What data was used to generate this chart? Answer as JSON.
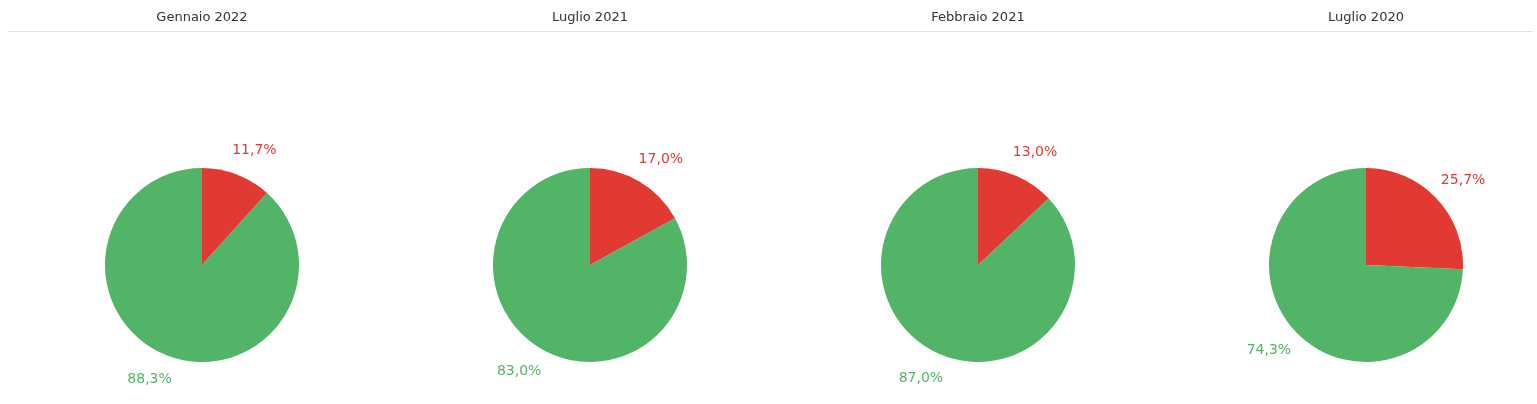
{
  "chart_data": [
    {
      "type": "pie",
      "title": "Gennaio 2022",
      "categories": [
        null,
        null
      ],
      "values": [
        11.7,
        88.3
      ],
      "colors": [
        "#e03a33",
        "#52b466"
      ],
      "value_labels": [
        "11,7%",
        "88,3%"
      ]
    },
    {
      "type": "pie",
      "title": "Luglio 2021",
      "categories": [
        null,
        null
      ],
      "values": [
        17.0,
        83.0
      ],
      "colors": [
        "#e03a33",
        "#52b466"
      ],
      "value_labels": [
        "17,0%",
        "83,0%"
      ]
    },
    {
      "type": "pie",
      "title": "Febbraio 2021",
      "categories": [
        null,
        null
      ],
      "values": [
        13.0,
        87.0
      ],
      "colors": [
        "#e03a33",
        "#52b466"
      ],
      "value_labels": [
        "13,0%",
        "87,0%"
      ]
    },
    {
      "type": "pie",
      "title": "Luglio 2020",
      "categories": [
        null,
        null
      ],
      "values": [
        25.7,
        74.3
      ],
      "colors": [
        "#e03a33",
        "#52b466"
      ],
      "value_labels": [
        "25,7%",
        "74,3%"
      ]
    }
  ]
}
